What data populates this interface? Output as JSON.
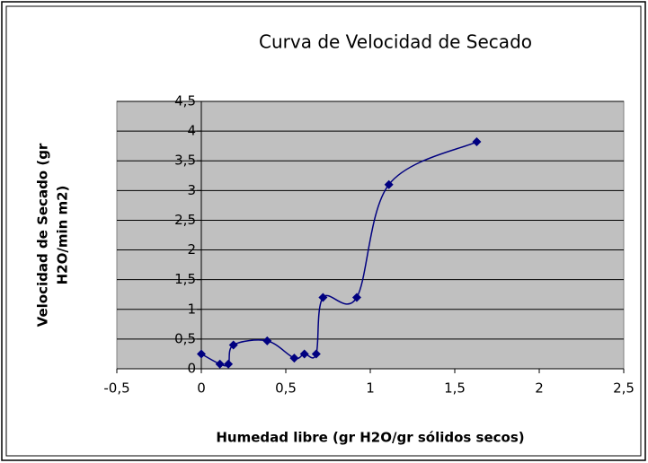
{
  "chart_data": {
    "type": "scatter",
    "title": "Curva de Velocidad de Secado",
    "x_label": "Humedad libre (gr H2O/gr sólidos secos)",
    "y_label": [
      "Velocidad de Secado (gr",
      "H2O/min m2)"
    ],
    "smooth": true,
    "grid": true,
    "series": [
      {
        "color": "#000080",
        "x": [
          0,
          0.11,
          0.16,
          0.19,
          0.39,
          0.55,
          0.61,
          0.68,
          0.72,
          0.92,
          1.11,
          1.63
        ],
        "values": [
          0.25,
          0.08,
          0.08,
          0.4,
          0.47,
          0.18,
          0.25,
          0.25,
          1.2,
          1.2,
          3.1,
          3.82
        ]
      }
    ],
    "xlim": [
      -0.5,
      2.5
    ],
    "xticks": [
      {
        "value": -0.5,
        "label": "-0,5"
      },
      0,
      {
        "value": 0.5,
        "label": "0,5"
      },
      1,
      {
        "value": 1.5,
        "label": "1,5"
      },
      2,
      {
        "value": 2.5,
        "label": "2,5"
      }
    ],
    "ylim": [
      0,
      4.5
    ],
    "yticks": [
      0,
      {
        "value": 0.5,
        "label": "0,5"
      },
      1,
      {
        "value": 1.5,
        "label": "1,5"
      },
      2,
      {
        "value": 2.5,
        "label": "2,5"
      },
      3,
      {
        "value": 3.5,
        "label": "3,5"
      },
      4,
      {
        "value": 4.5,
        "label": "4,5"
      }
    ]
  }
}
